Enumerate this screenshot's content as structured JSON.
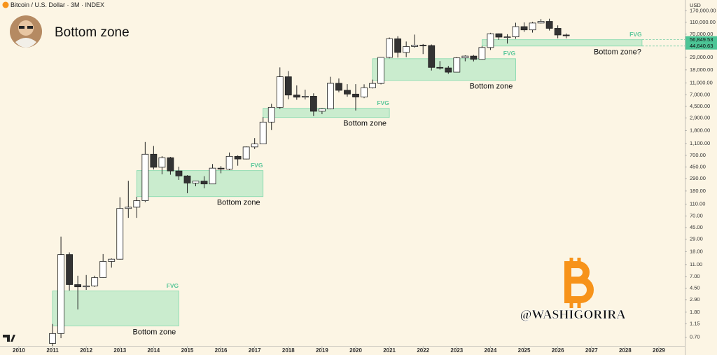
{
  "chart_data": {
    "type": "candlestick",
    "title": "Bottom zone",
    "subtitle": "Bitcoin / U.S. Dollar · 3M · INDEX",
    "currency": "USD",
    "watermark": "@WASHIGORIRA",
    "log_scale": true,
    "up_color": "#ffffff",
    "down_color": "#333333",
    "x": [
      2011,
      2011.25,
      2011.5,
      2011.75,
      2012,
      2012.25,
      2012.5,
      2012.75,
      2013,
      2013.25,
      2013.5,
      2013.75,
      2014,
      2014.25,
      2014.5,
      2014.75,
      2015,
      2015.25,
      2015.5,
      2015.75,
      2016,
      2016.25,
      2016.5,
      2016.75,
      2017,
      2017.25,
      2017.5,
      2017.75,
      2018,
      2018.25,
      2018.5,
      2018.75,
      2019,
      2019.25,
      2019.5,
      2019.75,
      2020,
      2020.25,
      2020.5,
      2020.75,
      2021,
      2021.25,
      2021.5,
      2021.75,
      2022,
      2022.25,
      2022.5,
      2022.75,
      2023,
      2023.25,
      2023.5,
      2023.75,
      2024,
      2024.25,
      2024.5,
      2024.75,
      2025,
      2025.25,
      2025.5,
      2025.75,
      2026,
      2026.25
    ],
    "open": [
      0.55,
      0.8,
      16.1,
      5.14,
      4.72,
      4.9,
      6.7,
      12.4,
      13.5,
      93,
      97.5,
      125,
      730,
      445,
      640,
      387,
      320,
      244,
      263,
      236,
      430,
      416,
      673,
      609,
      964,
      1079,
      2480,
      4338,
      13880,
      6930,
      6390,
      6625,
      3740,
      4100,
      10820,
      8300,
      7190,
      6420,
      9140,
      10780,
      28990,
      58800,
      35040,
      43800,
      46300,
      45500,
      19800,
      19400,
      16540,
      28470,
      30470,
      26970,
      42260,
      71300,
      62700,
      63300,
      93400,
      82500,
      107100,
      114000,
      87500,
      68000
    ],
    "high": [
      1.15,
      31.9,
      17.5,
      7.2,
      7.4,
      7.2,
      16.4,
      13.9,
      142,
      266,
      145,
      1163,
      1000,
      680,
      660,
      455,
      330,
      265,
      317,
      503,
      465,
      780,
      700,
      980,
      1350,
      3000,
      4980,
      19800,
      17250,
      9990,
      8500,
      7400,
      4200,
      13880,
      13000,
      10500,
      10500,
      10430,
      12480,
      29300,
      61800,
      64900,
      53000,
      69000,
      48200,
      47400,
      25200,
      21000,
      29200,
      31400,
      31800,
      44700,
      73800,
      72000,
      70000,
      108300,
      109600,
      111900,
      124500,
      126200,
      97900,
      72000
    ],
    "low": [
      0.5,
      0.67,
      4.1,
      2.0,
      4.2,
      4.7,
      6.6,
      9.8,
      13.3,
      65,
      65,
      118,
      410,
      340,
      335,
      275,
      166,
      216,
      200,
      236,
      354,
      400,
      472,
      600,
      890,
      1070,
      1830,
      4100,
      5900,
      5780,
      5860,
      3120,
      3350,
      4030,
      7700,
      6500,
      3850,
      6150,
      8900,
      10400,
      28000,
      28800,
      29300,
      42000,
      32900,
      17600,
      18200,
      15500,
      16500,
      25000,
      24900,
      26600,
      38500,
      56500,
      49000,
      58900,
      76600,
      74400,
      105300,
      80500,
      60000,
      60000
    ],
    "close": [
      0.8,
      16.1,
      5.14,
      4.72,
      4.9,
      6.7,
      12.4,
      13.5,
      93,
      97.5,
      125,
      730,
      445,
      640,
      387,
      320,
      244,
      263,
      236,
      430,
      416,
      673,
      609,
      964,
      1079,
      2480,
      4338,
      13880,
      6930,
      6390,
      6625,
      3740,
      4100,
      10820,
      8300,
      7190,
      6420,
      9140,
      10780,
      28990,
      58800,
      35040,
      43800,
      46300,
      45500,
      19800,
      19400,
      16540,
      28470,
      30470,
      26970,
      42260,
      71300,
      62700,
      63300,
      93400,
      82500,
      107100,
      114000,
      87500,
      68000,
      66000
    ],
    "xlim": [
      2009.44,
      2029.77
    ],
    "ylim": [
      0.5,
      257000
    ],
    "xticks": [
      2010,
      2011,
      2012,
      2013,
      2014,
      2015,
      2016,
      2017,
      2018,
      2019,
      2020,
      2021,
      2022,
      2023,
      2024,
      2025,
      2026,
      2027,
      2028,
      2029
    ],
    "yticks": [
      {
        "value": 0.7,
        "label": "0.70"
      },
      {
        "value": 1.15,
        "label": "1.15"
      },
      {
        "value": 1.8,
        "label": "1.80"
      },
      {
        "value": 2.9,
        "label": "2.90"
      },
      {
        "value": 4.5,
        "label": "4.50"
      },
      {
        "value": 7,
        "label": "7.00"
      },
      {
        "value": 11,
        "label": "11.00"
      },
      {
        "value": 18,
        "label": "18.00"
      },
      {
        "value": 29,
        "label": "29.00"
      },
      {
        "value": 45,
        "label": "45.00"
      },
      {
        "value": 70,
        "label": "70.00"
      },
      {
        "value": 110,
        "label": "110.00"
      },
      {
        "value": 180,
        "label": "180.00"
      },
      {
        "value": 290,
        "label": "290.00"
      },
      {
        "value": 450,
        "label": "450.00"
      },
      {
        "value": 700,
        "label": "700.00"
      },
      {
        "value": 1100,
        "label": "1,100.00"
      },
      {
        "value": 1800,
        "label": "1,800.00"
      },
      {
        "value": 2900,
        "label": "2,900.00"
      },
      {
        "value": 4500,
        "label": "4,500.00"
      },
      {
        "value": 7000,
        "label": "7,000.00"
      },
      {
        "value": 11000,
        "label": "11,000.00"
      },
      {
        "value": 18000,
        "label": "18,000.00"
      },
      {
        "value": 29000,
        "label": "29,000.00"
      },
      {
        "value": 70000,
        "label": "70,000.00"
      },
      {
        "value": 110000,
        "label": "110,000.00"
      },
      {
        "value": 170000,
        "label": "170,000.00"
      }
    ],
    "zones": [
      {
        "label": "FVG",
        "note": "Bottom zone",
        "x": [
          2011,
          2014.75
        ],
        "values": [
          1.07,
          4.04
        ]
      },
      {
        "label": "FVG",
        "note": "Bottom zone",
        "x": [
          2013.5,
          2017.25
        ],
        "values": [
          146,
          392
        ]
      },
      {
        "label": "FVG",
        "note": "Bottom zone",
        "x": [
          2017.25,
          2021
        ],
        "values": [
          2960,
          4180
        ]
      },
      {
        "label": "FVG",
        "note": "Bottom zone",
        "x": [
          2020.5,
          2024.75
        ],
        "values": [
          12100,
          27600
        ]
      },
      {
        "label": "FVG",
        "note": "Bottom zone?",
        "x": [
          2023.75,
          2028.5
        ],
        "values": [
          44640.63,
          56849.53
        ],
        "value_labels": [
          "44,640.63",
          "56,849.53"
        ]
      }
    ]
  }
}
